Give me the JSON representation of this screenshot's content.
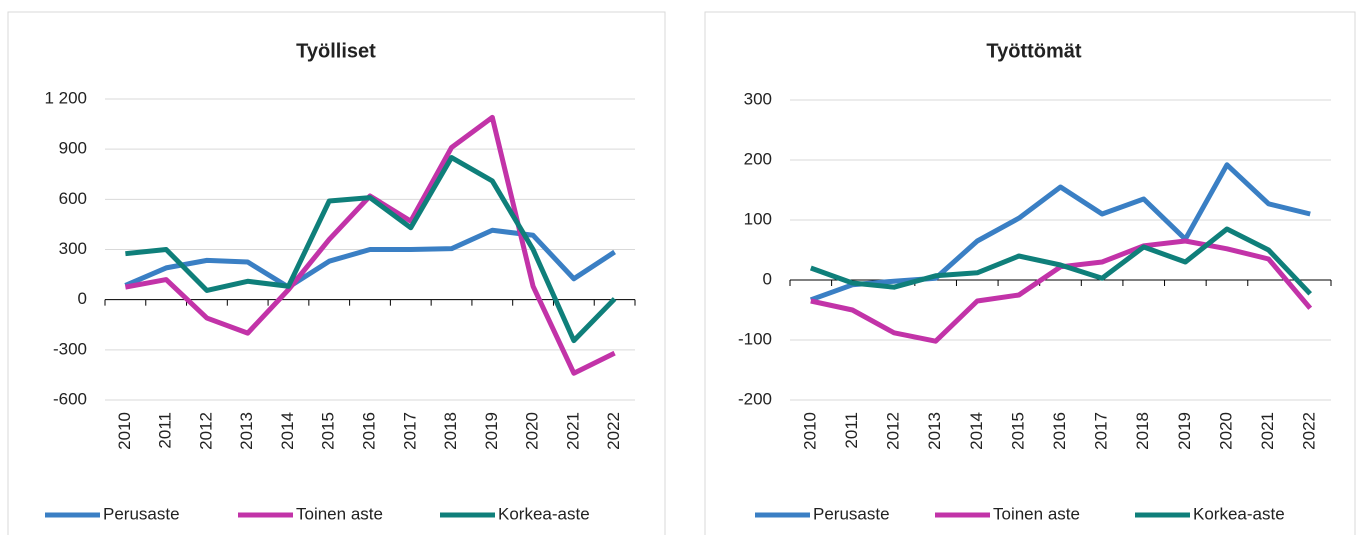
{
  "chart_data": [
    {
      "type": "line",
      "title": "Työlliset",
      "categories": [
        "2010",
        "2011",
        "2012",
        "2013",
        "2014",
        "2015",
        "2016",
        "2017",
        "2018",
        "2019",
        "2020",
        "2021",
        "2022"
      ],
      "series": [
        {
          "name": "Perusaste",
          "color": "#3a7fc4",
          "values": [
            85,
            190,
            235,
            225,
            75,
            230,
            300,
            300,
            305,
            415,
            385,
            125,
            285
          ]
        },
        {
          "name": "Toinen aste",
          "color": "#c233a8",
          "values": [
            75,
            120,
            -110,
            -200,
            60,
            360,
            620,
            470,
            910,
            1090,
            80,
            -440,
            -320
          ]
        },
        {
          "name": "Korkea-aste",
          "color": "#0f7f7a",
          "values": [
            275,
            300,
            55,
            110,
            80,
            590,
            610,
            430,
            850,
            710,
            300,
            -245,
            5
          ]
        }
      ],
      "ylim": [
        -600,
        1200
      ],
      "yticks": [
        -600,
        -300,
        0,
        300,
        600,
        900,
        {
          "value": 1200,
          "label": "1 200"
        }
      ],
      "grid": true,
      "legend": "bottom"
    },
    {
      "type": "line",
      "title": "Työttömät",
      "categories": [
        "2010",
        "2011",
        "2012",
        "2013",
        "2014",
        "2015",
        "2016",
        "2017",
        "2018",
        "2019",
        "2020",
        "2021",
        "2022"
      ],
      "series": [
        {
          "name": "Perusaste",
          "color": "#3a7fc4",
          "values": [
            -33,
            -8,
            -2,
            3,
            65,
            103,
            155,
            110,
            135,
            68,
            192,
            127,
            110
          ]
        },
        {
          "name": "Toinen aste",
          "color": "#c233a8",
          "values": [
            -35,
            -50,
            -88,
            -102,
            -35,
            -25,
            22,
            30,
            57,
            65,
            52,
            35,
            -47
          ]
        },
        {
          "name": "Korkea-aste",
          "color": "#0f7f7a",
          "values": [
            20,
            -5,
            -12,
            7,
            12,
            40,
            25,
            3,
            55,
            30,
            85,
            50,
            -23
          ]
        }
      ],
      "ylim": [
        -200,
        300
      ],
      "yticks": [
        -200,
        -100,
        0,
        100,
        200,
        300
      ],
      "grid": true,
      "legend": "bottom"
    }
  ]
}
